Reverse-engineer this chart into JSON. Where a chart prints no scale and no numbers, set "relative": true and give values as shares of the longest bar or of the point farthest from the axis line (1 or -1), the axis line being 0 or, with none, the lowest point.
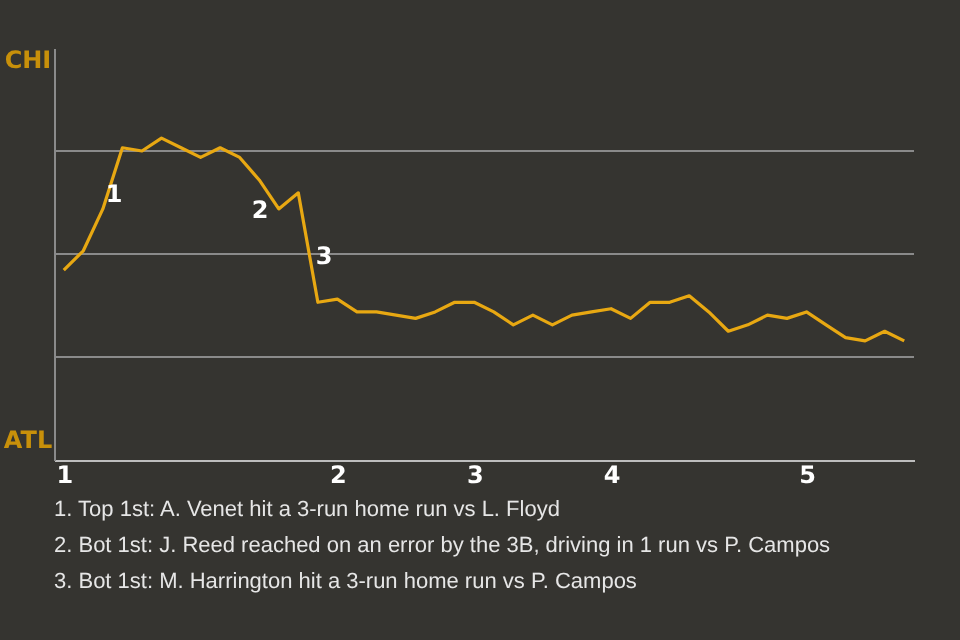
{
  "chart_data": {
    "type": "line",
    "relative": true,
    "categories": [
      "1",
      null,
      null,
      null,
      null,
      null,
      null,
      null,
      null,
      null,
      null,
      null,
      null,
      null,
      "2",
      null,
      null,
      null,
      null,
      null,
      null,
      "3",
      null,
      null,
      null,
      null,
      null,
      null,
      "4",
      null,
      null,
      null,
      null,
      null,
      null,
      null,
      null,
      null,
      "5",
      null,
      null,
      null,
      null,
      null
    ],
    "values": [
      0.59,
      0.65,
      0.78,
      0.97,
      0.96,
      1,
      0.97,
      0.94,
      0.97,
      0.94,
      0.87,
      0.78,
      0.83,
      0.49,
      0.5,
      0.46,
      0.46,
      0.45,
      0.44,
      0.46,
      0.49,
      0.49,
      0.46,
      0.42,
      0.45,
      0.42,
      0.45,
      0.46,
      0.47,
      0.44,
      0.49,
      0.49,
      0.51,
      0.46,
      0.4,
      0.42,
      0.45,
      0.44,
      0.46,
      0.42,
      0.38,
      0.37,
      0.4,
      0.37
    ],
    "color": "#e8a812",
    "ref_lines": [
      {
        "axis": "y",
        "value": 0.32,
        "color": "#8a8a8a"
      },
      {
        "axis": "y",
        "value": 0.64,
        "color": "#8a8a8a"
      },
      {
        "axis": "y",
        "value": 0.96,
        "color": "#8a8a8a"
      }
    ],
    "annotations": [
      "CHI",
      "ATL",
      "1",
      "2",
      "3",
      "1. Top 1st: A. Venet hit a 3-run home run vs L. Floyd",
      "2. Bot 1st: J. Reed reached on an error by the 3B, driving in 1 run vs P. Campos",
      "3. Bot 1st: M. Harrington hit a 3-run home run vs P. Campos"
    ]
  }
}
